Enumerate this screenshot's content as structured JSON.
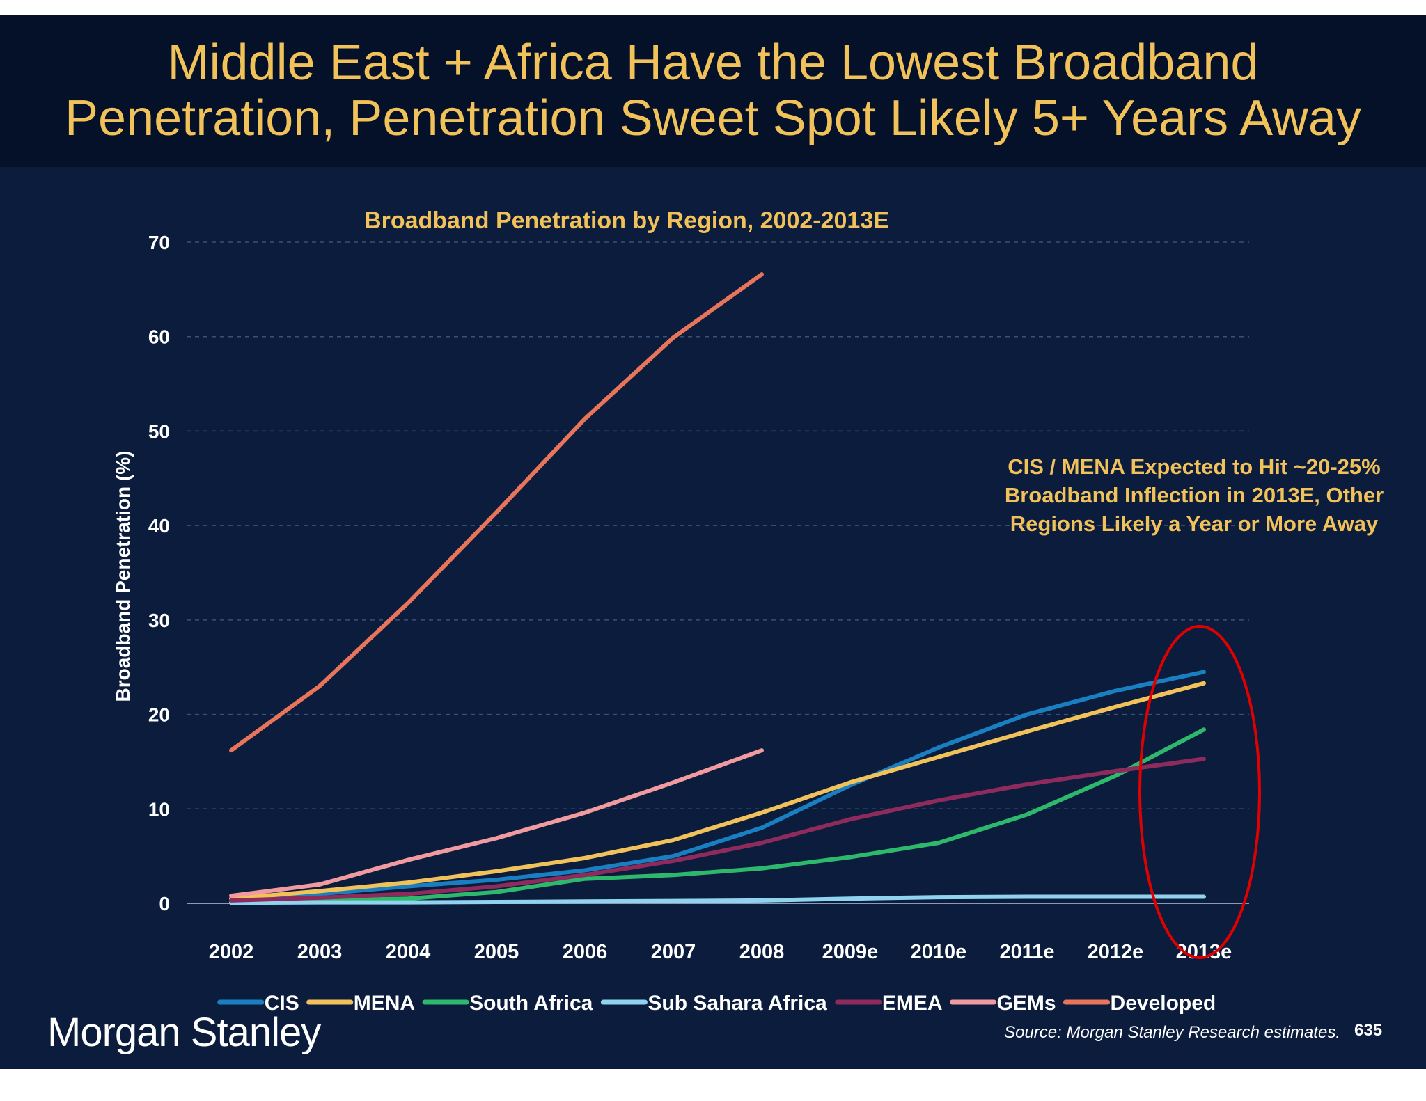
{
  "slide": {
    "title_line1": "Middle East + Africa Have the Lowest Broadband",
    "title_line2": "Penetration, Penetration Sweet Spot Likely 5+ Years Away",
    "callout": "CIS / MENA Expected to Hit ~20-25% Broadband Inflection in 2013E, Other Regions Likely a Year or More Away",
    "logo_text": "Morgan Stanley",
    "source": "Source: Morgan Stanley Research estimates.",
    "page_number": "635"
  },
  "colors": {
    "background": "#0c1c3d",
    "title": "#f2c25a",
    "highlight_ellipse": "#e00000"
  },
  "chart_data": {
    "type": "line",
    "title": "Broadband Penetration by Region, 2002-2013E",
    "ylabel": "Broadband Penetration (%)",
    "xlabel": "",
    "ylim": [
      0,
      70
    ],
    "yticks": [
      0,
      10,
      20,
      30,
      40,
      50,
      60,
      70
    ],
    "grid": "horizontal dashed",
    "legend": "bottom",
    "categories": [
      "2002",
      "2003",
      "2004",
      "2005",
      "2006",
      "2007",
      "2008",
      "2009e",
      "2010e",
      "2011e",
      "2012e",
      "2013e"
    ],
    "series": [
      {
        "name": "CIS",
        "color": "#1a7fc1",
        "values": [
          0.5,
          1.0,
          1.8,
          2.5,
          3.5,
          5.0,
          8.0,
          12.5,
          16.5,
          20.0,
          22.5,
          24.5
        ]
      },
      {
        "name": "MENA",
        "color": "#f2c25a",
        "values": [
          0.5,
          1.3,
          2.2,
          3.4,
          4.8,
          6.7,
          9.6,
          12.8,
          15.5,
          18.2,
          20.8,
          23.3
        ]
      },
      {
        "name": "South Africa",
        "color": "#2eb86b",
        "values": [
          0.1,
          0.3,
          0.5,
          1.2,
          2.6,
          3.0,
          3.7,
          4.9,
          6.4,
          9.4,
          13.5,
          18.4
        ]
      },
      {
        "name": "Sub Sahara Africa",
        "color": "#8fd3ee",
        "values": [
          0.05,
          0.1,
          0.1,
          0.15,
          0.2,
          0.25,
          0.3,
          0.5,
          0.65,
          0.7,
          0.7,
          0.7
        ]
      },
      {
        "name": "EMEA",
        "color": "#8e2b5c",
        "values": [
          0.3,
          0.6,
          1.0,
          1.8,
          3.0,
          4.5,
          6.4,
          8.9,
          10.9,
          12.6,
          14.0,
          15.3
        ]
      },
      {
        "name": "GEMs",
        "color": "#f19ba0",
        "values": [
          0.8,
          2.0,
          4.6,
          6.9,
          9.6,
          12.8,
          16.2,
          null,
          null,
          null,
          null,
          null
        ]
      },
      {
        "name": "Developed",
        "color": "#e8755a",
        "values": [
          16.2,
          23.0,
          31.8,
          41.4,
          51.3,
          59.9,
          66.6,
          null,
          null,
          null,
          null,
          null
        ]
      }
    ]
  }
}
